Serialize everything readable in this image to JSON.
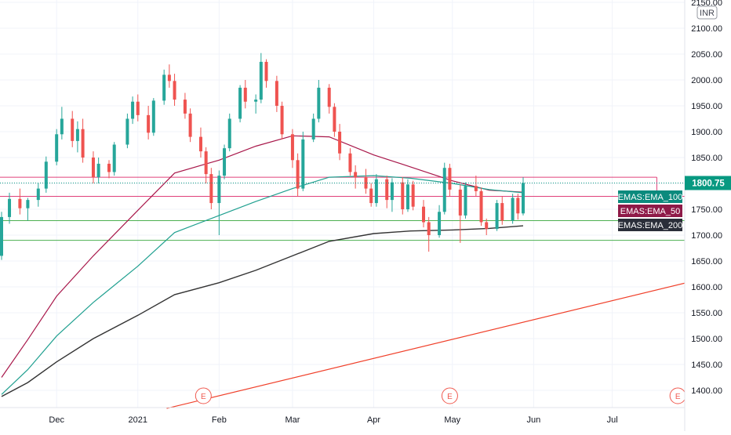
{
  "currency": "INR",
  "chart_data": {
    "type": "candlestick",
    "title": "",
    "xlabel": "",
    "ylabel": "",
    "ylim": [
      1365,
      2160
    ],
    "y_ticks": [
      1400,
      1450,
      1500,
      1550,
      1600,
      1650,
      1700,
      1750,
      1800,
      1850,
      1900,
      1950,
      2000,
      2050,
      2100,
      2150
    ],
    "x_tick_labels": [
      {
        "label": "Dec",
        "date": "2020-12-01"
      },
      {
        "label": "2021",
        "date": "2021-01-01"
      },
      {
        "label": "Feb",
        "date": "2021-02-01"
      },
      {
        "label": "Mar",
        "date": "2021-03-01"
      },
      {
        "label": "Apr",
        "date": "2021-04-01"
      },
      {
        "label": "May",
        "date": "2021-05-01"
      },
      {
        "label": "Jun",
        "date": "2021-06-01"
      },
      {
        "label": "Jul",
        "date": "2021-07-01"
      }
    ],
    "grid": true,
    "last_price": {
      "value": 1800.75,
      "label": "1800.75",
      "color": "#089981"
    },
    "up_color": "#26a69a",
    "down_color": "#ef5350",
    "candles": [
      [
        "2020-11-10",
        1660,
        1745,
        1652,
        1735
      ],
      [
        "2020-11-13",
        1735,
        1782,
        1722,
        1770
      ],
      [
        "2020-11-17",
        1770,
        1790,
        1740,
        1752
      ],
      [
        "2020-11-20",
        1752,
        1772,
        1728,
        1768
      ],
      [
        "2020-11-24",
        1768,
        1800,
        1755,
        1790
      ],
      [
        "2020-11-27",
        1790,
        1852,
        1782,
        1842
      ],
      [
        "2020-12-01",
        1842,
        1905,
        1835,
        1895
      ],
      [
        "2020-12-03",
        1895,
        1948,
        1885,
        1925
      ],
      [
        "2020-12-07",
        1925,
        1940,
        1870,
        1882
      ],
      [
        "2020-12-09",
        1882,
        1920,
        1860,
        1905
      ],
      [
        "2020-12-11",
        1905,
        1925,
        1840,
        1850
      ],
      [
        "2020-12-15",
        1850,
        1862,
        1800,
        1812
      ],
      [
        "2020-12-17",
        1812,
        1850,
        1800,
        1838
      ],
      [
        "2020-12-21",
        1838,
        1845,
        1810,
        1822
      ],
      [
        "2020-12-23",
        1822,
        1880,
        1815,
        1875
      ],
      [
        "2020-12-28",
        1875,
        1935,
        1868,
        1925
      ],
      [
        "2020-12-30",
        1925,
        1968,
        1915,
        1958
      ],
      [
        "2021-01-01",
        1958,
        1972,
        1920,
        1932
      ],
      [
        "2021-01-05",
        1932,
        1950,
        1885,
        1898
      ],
      [
        "2021-01-07",
        1898,
        1965,
        1892,
        1960
      ],
      [
        "2021-01-11",
        1960,
        2020,
        1952,
        2010
      ],
      [
        "2021-01-13",
        2010,
        2030,
        1985,
        1998
      ],
      [
        "2021-01-15",
        1998,
        2012,
        1950,
        1962
      ],
      [
        "2021-01-19",
        1962,
        1975,
        1925,
        1935
      ],
      [
        "2021-01-21",
        1935,
        1945,
        1880,
        1890
      ],
      [
        "2021-01-25",
        1890,
        1908,
        1850,
        1862
      ],
      [
        "2021-01-27",
        1862,
        1870,
        1800,
        1818
      ],
      [
        "2021-01-29",
        1818,
        1830,
        1750,
        1762
      ],
      [
        "2021-02-01",
        1762,
        1825,
        1700,
        1815
      ],
      [
        "2021-02-03",
        1815,
        1875,
        1808,
        1868
      ],
      [
        "2021-02-05",
        1868,
        1935,
        1862,
        1925
      ],
      [
        "2021-02-09",
        1925,
        1990,
        1918,
        1985
      ],
      [
        "2021-02-11",
        1985,
        2000,
        1945,
        1958
      ],
      [
        "2021-02-15",
        1958,
        1972,
        1935,
        1962
      ],
      [
        "2021-02-17",
        1962,
        2052,
        1955,
        2035
      ],
      [
        "2021-02-19",
        2035,
        2040,
        1985,
        1998
      ],
      [
        "2021-02-23",
        1998,
        2008,
        1938,
        1950
      ],
      [
        "2021-02-25",
        1950,
        1958,
        1885,
        1895
      ],
      [
        "2021-03-01",
        1895,
        1905,
        1830,
        1845
      ],
      [
        "2021-03-03",
        1845,
        1858,
        1775,
        1790
      ],
      [
        "2021-03-05",
        1790,
        1900,
        1785,
        1885
      ],
      [
        "2021-03-09",
        1885,
        1935,
        1880,
        1925
      ],
      [
        "2021-03-11",
        1925,
        2000,
        1918,
        1985
      ],
      [
        "2021-03-15",
        1985,
        1992,
        1935,
        1948
      ],
      [
        "2021-03-17",
        1948,
        1955,
        1890,
        1900
      ],
      [
        "2021-03-19",
        1900,
        1915,
        1845,
        1858
      ],
      [
        "2021-03-23",
        1858,
        1868,
        1815,
        1822
      ],
      [
        "2021-03-25",
        1822,
        1835,
        1790,
        1812
      ],
      [
        "2021-03-29",
        1812,
        1828,
        1780,
        1790
      ],
      [
        "2021-03-31",
        1790,
        1800,
        1755,
        1762
      ],
      [
        "2021-04-02",
        1762,
        1818,
        1755,
        1808
      ],
      [
        "2021-04-06",
        1808,
        1815,
        1752,
        1768
      ],
      [
        "2021-04-08",
        1768,
        1810,
        1745,
        1802
      ],
      [
        "2021-04-12",
        1802,
        1812,
        1740,
        1750
      ],
      [
        "2021-04-14",
        1750,
        1808,
        1745,
        1798
      ],
      [
        "2021-04-16",
        1798,
        1805,
        1748,
        1755
      ],
      [
        "2021-04-20",
        1755,
        1768,
        1715,
        1725
      ],
      [
        "2021-04-22",
        1725,
        1735,
        1668,
        1700
      ],
      [
        "2021-04-26",
        1700,
        1758,
        1695,
        1745
      ],
      [
        "2021-04-28",
        1745,
        1840,
        1740,
        1830
      ],
      [
        "2021-04-30",
        1830,
        1838,
        1775,
        1788
      ],
      [
        "2021-05-04",
        1788,
        1798,
        1685,
        1738
      ],
      [
        "2021-05-06",
        1738,
        1802,
        1732,
        1795
      ],
      [
        "2021-05-10",
        1795,
        1815,
        1775,
        1785
      ],
      [
        "2021-05-12",
        1785,
        1792,
        1718,
        1725
      ],
      [
        "2021-05-14",
        1725,
        1732,
        1700,
        1712
      ],
      [
        "2021-05-18",
        1712,
        1768,
        1708,
        1762
      ],
      [
        "2021-05-20",
        1762,
        1775,
        1720,
        1728
      ],
      [
        "2021-05-24",
        1728,
        1780,
        1722,
        1772
      ],
      [
        "2021-05-26",
        1772,
        1780,
        1730,
        1742
      ],
      [
        "2021-05-28",
        1742,
        1812,
        1738,
        1800.75
      ]
    ],
    "series": [
      {
        "name": "EMAS:EMA_50",
        "color": "#a8174a",
        "points": [
          [
            "2020-11-10",
            1425
          ],
          [
            "2020-11-20",
            1498
          ],
          [
            "2020-12-01",
            1582
          ],
          [
            "2020-12-15",
            1660
          ],
          [
            "2021-01-01",
            1748
          ],
          [
            "2021-01-15",
            1820
          ],
          [
            "2021-02-01",
            1845
          ],
          [
            "2021-02-15",
            1872
          ],
          [
            "2021-03-01",
            1892
          ],
          [
            "2021-03-15",
            1890
          ],
          [
            "2021-04-01",
            1855
          ],
          [
            "2021-04-15",
            1832
          ],
          [
            "2021-05-01",
            1805
          ],
          [
            "2021-05-15",
            1787
          ],
          [
            "2021-05-28",
            1783
          ]
        ]
      },
      {
        "name": "EMAS:EMA_100",
        "color": "#20a090",
        "points": [
          [
            "2020-11-10",
            1392
          ],
          [
            "2020-11-20",
            1440
          ],
          [
            "2020-12-01",
            1505
          ],
          [
            "2020-12-15",
            1570
          ],
          [
            "2021-01-01",
            1640
          ],
          [
            "2021-01-15",
            1705
          ],
          [
            "2021-02-01",
            1738
          ],
          [
            "2021-02-15",
            1765
          ],
          [
            "2021-03-01",
            1790
          ],
          [
            "2021-03-15",
            1812
          ],
          [
            "2021-04-01",
            1815
          ],
          [
            "2021-04-15",
            1810
          ],
          [
            "2021-05-01",
            1800
          ],
          [
            "2021-05-15",
            1788
          ],
          [
            "2021-05-28",
            1782
          ]
        ]
      },
      {
        "name": "EMAS:EMA_200",
        "color": "#333333",
        "points": [
          [
            "2020-11-10",
            1388
          ],
          [
            "2020-11-20",
            1415
          ],
          [
            "2020-12-01",
            1455
          ],
          [
            "2020-12-15",
            1500
          ],
          [
            "2021-01-01",
            1545
          ],
          [
            "2021-01-15",
            1585
          ],
          [
            "2021-02-01",
            1608
          ],
          [
            "2021-02-15",
            1632
          ],
          [
            "2021-03-01",
            1660
          ],
          [
            "2021-03-15",
            1688
          ],
          [
            "2021-04-01",
            1703
          ],
          [
            "2021-04-15",
            1708
          ],
          [
            "2021-05-01",
            1710
          ],
          [
            "2021-05-15",
            1713
          ],
          [
            "2021-05-28",
            1718
          ]
        ]
      }
    ],
    "horizontal_lines": [
      {
        "value": 1812,
        "end": "2021-07-18",
        "color": "#e0407a"
      },
      {
        "value": 1775,
        "end": "chart-end",
        "color": "#e0407a"
      },
      {
        "value": 1728,
        "end": "chart-end",
        "color": "#4caf50"
      },
      {
        "value": 1690,
        "end": "chart-end",
        "color": "#4caf50"
      }
    ],
    "trend_line": {
      "color": "#f0402a",
      "points": [
        [
          "2021-01-12",
          1365
        ],
        [
          "2021-08-04",
          1615
        ]
      ]
    },
    "event_markers": [
      {
        "date": "2021-01-26",
        "label": "E"
      },
      {
        "date": "2021-04-30",
        "label": "E"
      },
      {
        "date": "2021-07-26",
        "label": "E"
      }
    ]
  }
}
